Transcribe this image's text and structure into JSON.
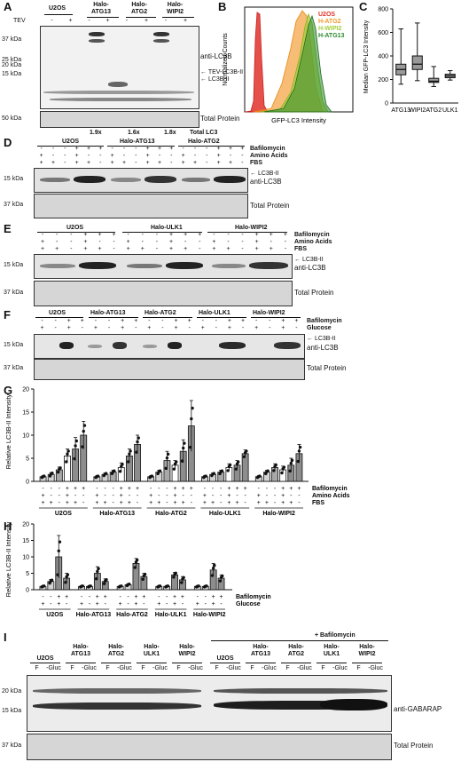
{
  "panels": {
    "A": "A",
    "B": "B",
    "C": "C",
    "D": "D",
    "E": "E",
    "F": "F",
    "G": "G",
    "H": "H",
    "I": "I"
  },
  "A": {
    "groups": [
      "U2OS",
      "Halo-\nATG13",
      "Halo-\nATG2",
      "Halo-\nWIPI2"
    ],
    "tev_label": "TEV",
    "tev_row": [
      "-",
      "+",
      "-",
      "+",
      "-",
      "+",
      "-",
      "+"
    ],
    "mw": [
      "37 kDa",
      "25 kDa",
      "20 kDa",
      "15 kDa",
      "50 kDa"
    ],
    "band_labels": [
      "anti-LC3B",
      "TEV-LC3B-II",
      "LC3B-II"
    ],
    "total_protein": "Total Protein",
    "ratios": [
      "1.9x",
      "1.6x",
      "1.8x"
    ],
    "ratio_label": "Total LC3"
  },
  "B": {
    "ylabel": "Normalized Counts",
    "xlabel": "GFP-LC3 Intensity",
    "legend": [
      {
        "name": "U2OS",
        "color": "#e0312a"
      },
      {
        "name": "H-ATG2",
        "color": "#f39a2c"
      },
      {
        "name": "H-WIPI2",
        "color": "#a4cf3c"
      },
      {
        "name": "H-ATG13",
        "color": "#2f8a2f"
      }
    ]
  },
  "chart_data": [
    {
      "type": "box",
      "ylabel": "Median GFP-LC3 Intensity",
      "categories": [
        "ATG13",
        "WIPI2",
        "ATG2",
        "ULK1"
      ],
      "yticks": [
        0,
        200,
        400,
        600,
        800
      ],
      "ylim": [
        0,
        800
      ],
      "boxes": [
        {
          "min": 160,
          "q1": 240,
          "median": 285,
          "q3": 330,
          "max": 630
        },
        {
          "min": 190,
          "q1": 285,
          "median": 330,
          "q3": 400,
          "max": 680
        },
        {
          "min": 140,
          "q1": 175,
          "median": 185,
          "q3": 210,
          "max": 310
        },
        {
          "min": 195,
          "q1": 215,
          "median": 230,
          "q3": 245,
          "max": 275
        }
      ]
    },
    {
      "type": "bar",
      "ylabel": "Relative LC3B-II Intensity",
      "yticks": [
        0,
        5,
        10,
        15,
        20
      ],
      "ylim": [
        0,
        20
      ],
      "groups": [
        "U2OS",
        "Halo-ATG13",
        "Halo-ATG2",
        "Halo-ULK1",
        "Halo-WIPI2"
      ],
      "conditions": {
        "Bafilomycin": [
          "-",
          "-",
          "-",
          "+",
          "+",
          "+"
        ],
        "Amino Acids": [
          "+",
          "-",
          "-",
          "+",
          "-",
          "-"
        ],
        "FBS": [
          "+",
          "+",
          "-",
          "+",
          "+",
          "-"
        ]
      },
      "values": [
        [
          1.0,
          1.5,
          2.5,
          5.5,
          7.0,
          10.0
        ],
        [
          1.0,
          1.5,
          2.0,
          3.0,
          5.5,
          8.0
        ],
        [
          1.0,
          2.0,
          4.5,
          3.5,
          6.5,
          12.0
        ],
        [
          1.0,
          1.5,
          2.0,
          3.0,
          3.5,
          6.0
        ],
        [
          1.0,
          2.0,
          3.0,
          2.5,
          3.5,
          6.0
        ]
      ],
      "errors": [
        [
          0.2,
          0.4,
          0.6,
          1.5,
          2.5,
          3.0
        ],
        [
          0.2,
          0.3,
          0.4,
          1.0,
          1.5,
          2.0
        ],
        [
          0.2,
          0.4,
          2.0,
          1.0,
          2.5,
          5.5
        ],
        [
          0.2,
          0.3,
          0.4,
          0.8,
          1.0,
          0.8
        ],
        [
          0.2,
          0.4,
          0.8,
          0.8,
          1.5,
          2.0
        ]
      ]
    },
    {
      "type": "bar",
      "ylabel": "Relative LC3B-II Intensity",
      "yticks": [
        0,
        5,
        10,
        15,
        20
      ],
      "ylim": [
        0,
        20
      ],
      "groups": [
        "U2OS",
        "Halo-ATG13",
        "Halo-ATG2",
        "Halo-ULK1",
        "Halo-WIPI2"
      ],
      "conditions": {
        "Bafilomycin": [
          "-",
          "-",
          "+",
          "+"
        ],
        "Glucose": [
          "+",
          "-",
          "+",
          "-"
        ]
      },
      "values": [
        [
          1.0,
          2.5,
          10.0,
          3.5
        ],
        [
          1.0,
          1.0,
          5.0,
          2.5
        ],
        [
          1.0,
          1.5,
          8.0,
          4.0
        ],
        [
          1.0,
          1.0,
          4.5,
          3.0
        ],
        [
          1.0,
          1.0,
          6.0,
          3.5
        ]
      ],
      "errors": [
        [
          0.2,
          0.6,
          6.5,
          1.5
        ],
        [
          0.2,
          0.2,
          2.0,
          0.8
        ],
        [
          0.2,
          0.3,
          1.5,
          1.0
        ],
        [
          0.2,
          0.2,
          0.8,
          1.0
        ],
        [
          0.2,
          0.2,
          2.0,
          1.0
        ]
      ]
    }
  ],
  "D": {
    "groups": [
      "U2OS",
      "Halo-ATG13",
      "Halo-ATG2"
    ],
    "rows": [
      {
        "label": "Bafilomycin",
        "values": [
          "-",
          "-",
          "-",
          "+",
          "+",
          "+",
          "-",
          "-",
          "-",
          "+",
          "+",
          "+",
          "-",
          "-",
          "-",
          "+",
          "+",
          "+"
        ]
      },
      {
        "label": "Amino Acids",
        "values": [
          "+",
          "-",
          "-",
          "+",
          "-",
          "-",
          "+",
          "-",
          "-",
          "+",
          "-",
          "-",
          "+",
          "-",
          "-",
          "+",
          "-",
          "-"
        ]
      },
      {
        "label": "FBS",
        "values": [
          "+",
          "+",
          "-",
          "+",
          "+",
          "-",
          "+",
          "+",
          "-",
          "+",
          "+",
          "-",
          "+",
          "+",
          "-",
          "+",
          "+",
          "-"
        ]
      }
    ],
    "mw": [
      "15 kDa",
      "37 kDa"
    ],
    "band_labels": [
      "LC3B-II",
      "anti-LC3B"
    ],
    "total_protein": "Total Protein"
  },
  "E": {
    "groups": [
      "U2OS",
      "Halo-ULK1",
      "Halo-WIPI2"
    ],
    "rows": [
      {
        "label": "Bafilomycin",
        "values": [
          "-",
          "-",
          "-",
          "+",
          "+",
          "+",
          "-",
          "-",
          "-",
          "+",
          "+",
          "+",
          "-",
          "-",
          "-",
          "+",
          "+",
          "+"
        ]
      },
      {
        "label": "Amino Acids",
        "values": [
          "+",
          "-",
          "-",
          "+",
          "-",
          "-",
          "+",
          "-",
          "-",
          "+",
          "-",
          "-",
          "+",
          "-",
          "-",
          "+",
          "-",
          "-"
        ]
      },
      {
        "label": "FBS",
        "values": [
          "+",
          "+",
          "-",
          "+",
          "+",
          "-",
          "+",
          "+",
          "-",
          "+",
          "+",
          "-",
          "+",
          "+",
          "-",
          "+",
          "+",
          "-"
        ]
      }
    ],
    "mw": [
      "15 kDa",
      "37 kDa"
    ],
    "band_labels": [
      "LC3B-II",
      "anti-LC3B"
    ],
    "total_protein": "Total Protein"
  },
  "F": {
    "groups": [
      "U2OS",
      "Halo-ATG13",
      "Halo-ATG2",
      "Halo-ULK1",
      "Halo-WIPI2"
    ],
    "rows": [
      {
        "label": "Bafilomycin",
        "values": [
          "-",
          "-",
          "+",
          "+",
          "-",
          "-",
          "+",
          "+",
          "-",
          "-",
          "+",
          "+",
          "-",
          "-",
          "+",
          "+",
          "-",
          "-",
          "+",
          "+"
        ]
      },
      {
        "label": "Glucose",
        "values": [
          "+",
          "-",
          "+",
          "-",
          "+",
          "-",
          "+",
          "-",
          "+",
          "-",
          "+",
          "-",
          "+",
          "-",
          "+",
          "-",
          "+",
          "-",
          "+",
          "-"
        ]
      }
    ],
    "mw": [
      "15 kDa",
      "37 kDa"
    ],
    "band_labels": [
      "LC3B-II",
      "anti-LC3B"
    ],
    "total_protein": "Total Protein"
  },
  "I": {
    "baf_label": "+ Bafilomycin",
    "groups": [
      "U2OS",
      "Halo-\nATG13",
      "Halo-\nATG2",
      "Halo-\nULK1",
      "Halo-\nWIPI2"
    ],
    "lanes": [
      "F",
      "-Gluc"
    ],
    "mw": [
      "20 kDa",
      "15 kDa",
      "37 kDa"
    ],
    "band_label": "anti-GABARAP",
    "total_protein": "Total Protein"
  }
}
